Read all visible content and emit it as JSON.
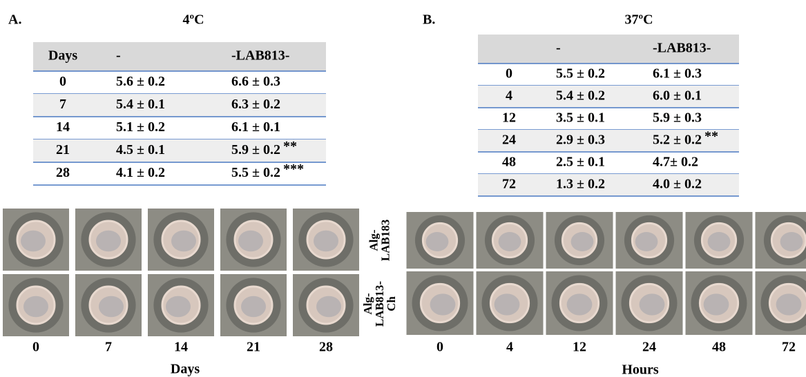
{
  "panel_a": {
    "label": "A.",
    "title": "4ºC",
    "table": {
      "header": [
        "Days",
        "-",
        "-LAB813-"
      ],
      "rows": [
        {
          "day": "0",
          "control": "5.6 ± 0.2",
          "treated": "6.6 ± 0.3"
        },
        {
          "day": "7",
          "control": "5.4 ± 0.1",
          "treated": "6.3 ± 0.2"
        },
        {
          "day": "14",
          "control": "5.1 ± 0.2",
          "treated": "6.1 ± 0.1"
        },
        {
          "day": "21",
          "control": "4.5 ± 0.1",
          "treated": "5.9 ± 0.2",
          "sig": "**"
        },
        {
          "day": "28",
          "control": "4.1 ± 0.2",
          "treated": "5.5 ± 0.2",
          "sig": "***"
        }
      ]
    },
    "photo_labels": [
      "0",
      "7",
      "14",
      "21",
      "28"
    ],
    "x_axis_label": "Days"
  },
  "panel_b": {
    "label": "B.",
    "title": "37ºC",
    "table": {
      "header": [
        "-",
        "-LAB813-"
      ],
      "rows": [
        {
          "day": "0",
          "control": "5.5 ± 0.2",
          "treated": "6.1 ± 0.3"
        },
        {
          "day": "4",
          "control": "5.4 ± 0.2",
          "treated": "6.0 ± 0.1"
        },
        {
          "day": "12",
          "control": "3.5 ± 0.1",
          "treated": "5.9 ± 0.3"
        },
        {
          "day": "24",
          "control": "2.9 ± 0.3",
          "treated": "5.2 ± 0.2",
          "sig": "**"
        },
        {
          "day": "48",
          "control": "2.5 ± 0.1",
          "treated": "4.7± 0.2"
        },
        {
          "day": "72",
          "control": "1.3 ± 0.2",
          "treated": "4.0 ± 0.2"
        }
      ]
    },
    "row_labels": [
      [
        "Alg-",
        "LAB183"
      ],
      [
        "Alg-",
        "LAB813-",
        "Ch"
      ]
    ],
    "photo_labels": [
      "0",
      "4",
      "12",
      "24",
      "48",
      "72"
    ],
    "x_axis_label": "Hours"
  }
}
